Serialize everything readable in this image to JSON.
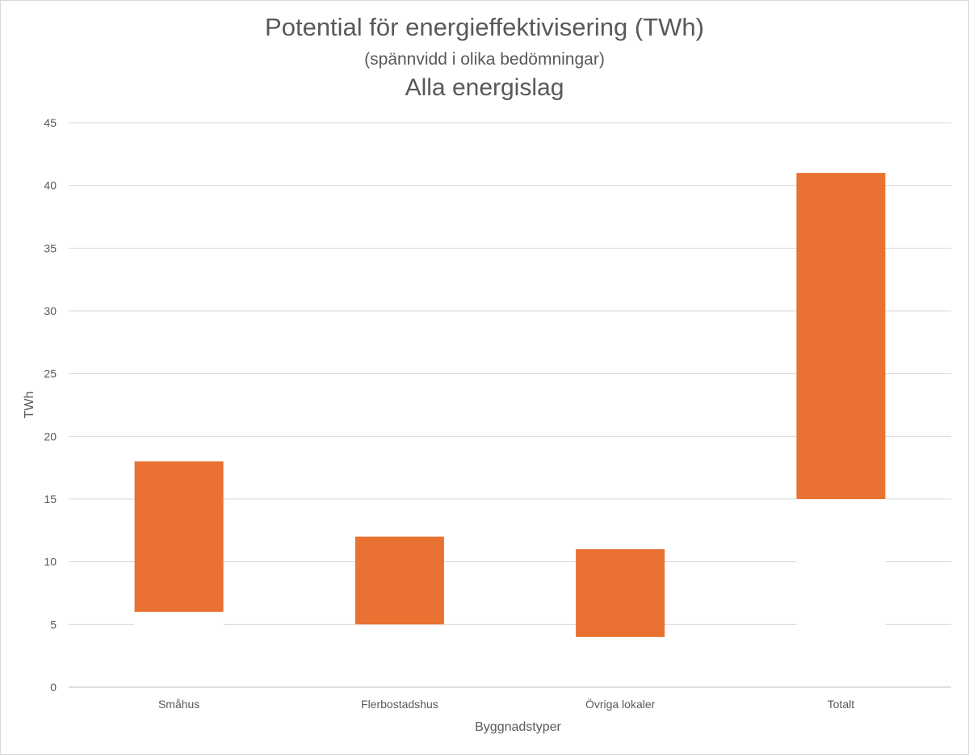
{
  "chart_data": {
    "type": "bar",
    "title": "Potential för energieffektivisering (TWh)",
    "subtitle": "(spännvidd i olika bedömningar)",
    "subtitle2": "Alla energislag",
    "xlabel": "Byggnadstyper",
    "ylabel": "TWh",
    "ylim": [
      0,
      45
    ],
    "yticks": [
      0,
      5,
      10,
      15,
      20,
      25,
      30,
      35,
      40,
      45
    ],
    "grid": true,
    "legend": "none",
    "categories": [
      "Småhus",
      "Flerbostadshus",
      "Övriga lokaler",
      "Totalt"
    ],
    "series": [
      {
        "color": "#E97132",
        "low": [
          6,
          5,
          4,
          15
        ],
        "high": [
          18,
          12,
          11,
          41
        ]
      }
    ]
  }
}
